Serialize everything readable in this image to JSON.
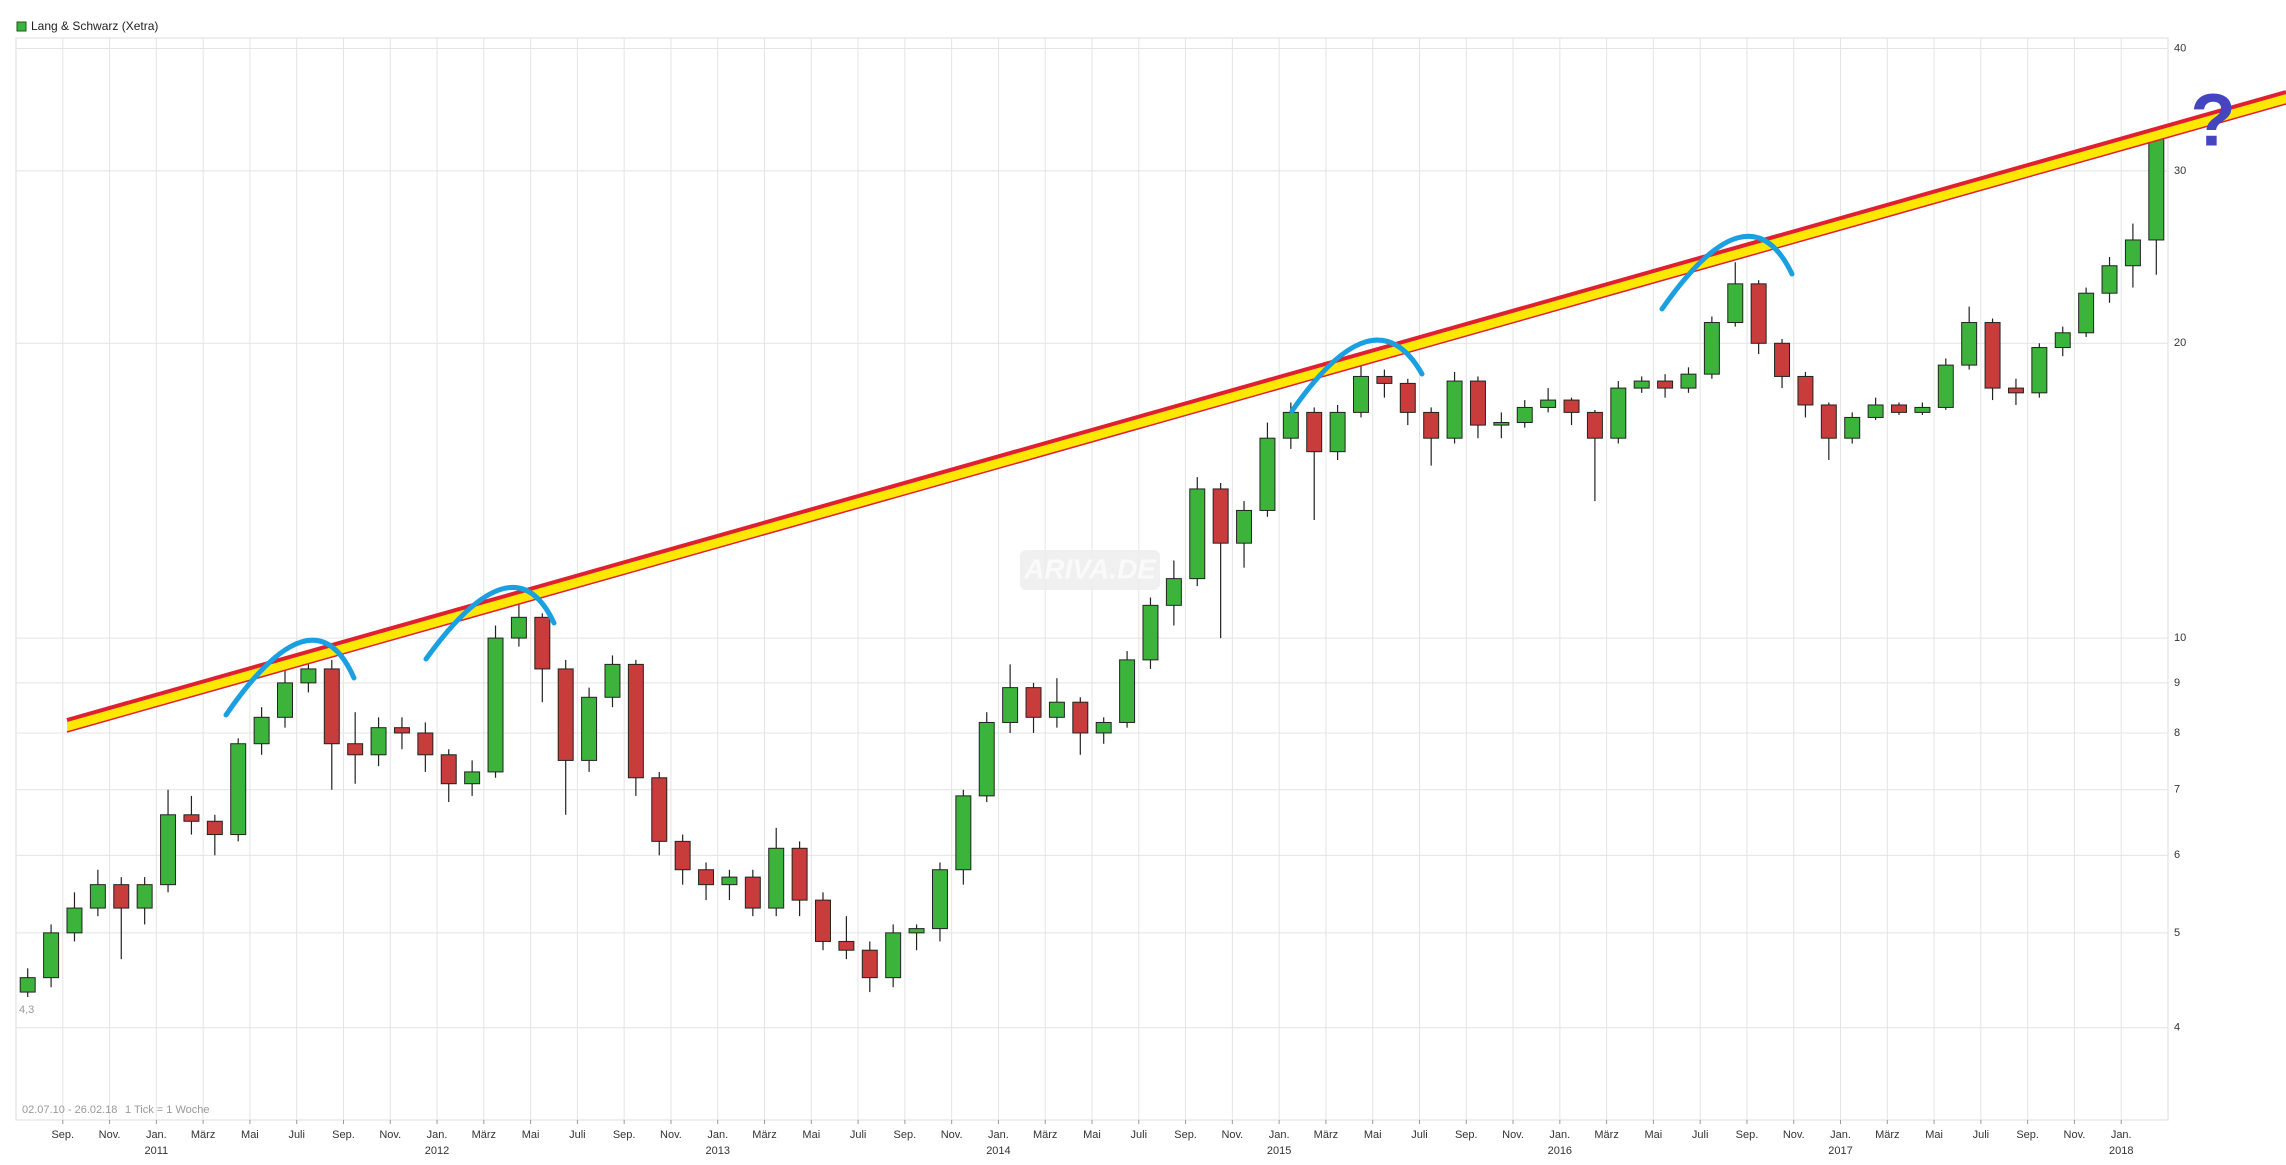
{
  "chart_data": {
    "type": "candlestick",
    "title": "Lang & Schwarz (Xetra)",
    "range_label": "02.07.10 - 26.02.18",
    "tick_info": "1 Tick = 1 Woche",
    "start_label": "4,3",
    "watermark": "ARIVA.DE",
    "annotation": "?",
    "log_scale": true,
    "grid": true,
    "up_color": "#3cb43c",
    "down_color": "#c83c3c",
    "x": [
      "2010-07",
      "2010-08",
      "2010-09",
      "2010-10",
      "2010-11",
      "2010-12",
      "2011-01",
      "2011-02",
      "2011-03",
      "2011-04",
      "2011-05",
      "2011-06",
      "2011-07",
      "2011-08",
      "2011-09",
      "2011-10",
      "2011-11",
      "2011-12",
      "2012-01",
      "2012-02",
      "2012-03",
      "2012-04",
      "2012-05",
      "2012-06",
      "2012-07",
      "2012-08",
      "2012-09",
      "2012-10",
      "2012-11",
      "2012-12",
      "2013-01",
      "2013-02",
      "2013-03",
      "2013-04",
      "2013-05",
      "2013-06",
      "2013-07",
      "2013-08",
      "2013-09",
      "2013-10",
      "2013-11",
      "2013-12",
      "2014-01",
      "2014-02",
      "2014-03",
      "2014-04",
      "2014-05",
      "2014-06",
      "2014-07",
      "2014-08",
      "2014-09",
      "2014-10",
      "2014-11",
      "2014-12",
      "2015-01",
      "2015-02",
      "2015-03",
      "2015-04",
      "2015-05",
      "2015-06",
      "2015-07",
      "2015-08",
      "2015-09",
      "2015-10",
      "2015-11",
      "2015-12",
      "2016-01",
      "2016-02",
      "2016-03",
      "2016-04",
      "2016-05",
      "2016-06",
      "2016-07",
      "2016-08",
      "2016-09",
      "2016-10",
      "2016-11",
      "2016-12",
      "2017-01",
      "2017-02",
      "2017-03",
      "2017-04",
      "2017-05",
      "2017-06",
      "2017-07",
      "2017-08",
      "2017-09",
      "2017-10",
      "2017-11",
      "2017-12",
      "2018-01",
      "2018-02"
    ],
    "open": [
      4.35,
      4.5,
      5.0,
      5.3,
      5.6,
      5.3,
      5.6,
      6.6,
      6.5,
      6.3,
      7.8,
      8.3,
      9.0,
      9.3,
      7.8,
      7.6,
      8.1,
      8.0,
      7.6,
      7.1,
      7.3,
      10.0,
      10.5,
      9.3,
      7.5,
      8.7,
      9.4,
      7.2,
      6.2,
      5.8,
      5.6,
      5.7,
      5.3,
      6.1,
      5.4,
      4.9,
      4.8,
      4.5,
      5.0,
      5.05,
      5.8,
      6.9,
      8.2,
      8.9,
      8.3,
      8.6,
      8.0,
      8.2,
      9.5,
      10.8,
      11.5,
      14.2,
      12.5,
      13.5,
      16.0,
      17.0,
      15.5,
      17.0,
      18.5,
      18.2,
      17.0,
      16.0,
      18.3,
      16.5,
      16.6,
      17.2,
      17.5,
      17.0,
      16.0,
      18.0,
      18.3,
      18.0,
      18.6,
      21.0,
      23.0,
      20.0,
      18.5,
      17.3,
      16.0,
      16.8,
      17.3,
      17.0,
      17.2,
      19.0,
      21.0,
      18.0,
      17.8,
      19.8,
      20.5,
      22.5,
      24.0,
      25.5
    ],
    "high": [
      4.6,
      5.1,
      5.5,
      5.8,
      5.7,
      5.7,
      7.0,
      6.9,
      6.6,
      7.9,
      8.5,
      9.3,
      9.6,
      9.5,
      8.4,
      8.3,
      8.3,
      8.2,
      7.7,
      7.5,
      10.3,
      10.9,
      10.6,
      9.5,
      8.9,
      9.6,
      9.5,
      7.3,
      6.3,
      5.9,
      5.8,
      5.8,
      6.4,
      6.2,
      5.5,
      5.2,
      4.9,
      5.1,
      5.1,
      5.9,
      7.0,
      8.4,
      9.4,
      9.0,
      9.1,
      8.7,
      8.3,
      9.7,
      11.0,
      12.0,
      14.6,
      14.4,
      13.8,
      16.6,
      17.4,
      17.2,
      17.3,
      19.0,
      18.8,
      18.4,
      17.2,
      18.7,
      18.5,
      17.0,
      17.5,
      18.0,
      17.6,
      17.1,
      18.3,
      18.5,
      18.6,
      18.9,
      21.3,
      24.2,
      23.2,
      20.2,
      18.7,
      17.4,
      17.0,
      17.6,
      17.4,
      17.4,
      19.3,
      21.8,
      21.2,
      18.4,
      20.0,
      20.8,
      22.8,
      24.5,
      26.5,
      33.0
    ],
    "low": [
      4.3,
      4.4,
      4.9,
      5.2,
      4.7,
      5.1,
      5.5,
      6.3,
      6.0,
      6.2,
      7.6,
      8.1,
      8.8,
      7.0,
      7.1,
      7.4,
      7.7,
      7.3,
      6.8,
      6.9,
      7.2,
      9.8,
      8.6,
      6.6,
      7.3,
      8.5,
      6.9,
      6.0,
      5.6,
      5.4,
      5.4,
      5.2,
      5.2,
      5.2,
      4.8,
      4.7,
      4.35,
      4.4,
      4.8,
      4.9,
      5.6,
      6.8,
      8.0,
      8.0,
      8.1,
      7.6,
      7.8,
      8.1,
      9.3,
      10.3,
      11.3,
      10.0,
      11.8,
      13.3,
      15.6,
      13.2,
      15.2,
      16.8,
      17.6,
      16.5,
      15.0,
      15.8,
      16.0,
      16.0,
      16.4,
      17.0,
      16.5,
      13.8,
      15.8,
      17.8,
      17.6,
      17.8,
      18.4,
      20.8,
      19.5,
      18.0,
      16.8,
      15.2,
      15.8,
      16.7,
      16.9,
      16.9,
      17.1,
      18.8,
      17.5,
      17.3,
      17.6,
      19.4,
      20.3,
      22.0,
      22.8,
      23.5
    ],
    "close": [
      4.5,
      5.0,
      5.3,
      5.6,
      5.3,
      5.6,
      6.6,
      6.5,
      6.3,
      7.8,
      8.3,
      9.0,
      9.3,
      7.8,
      7.6,
      8.1,
      8.0,
      7.6,
      7.1,
      7.3,
      10.0,
      10.5,
      9.3,
      7.5,
      8.7,
      9.4,
      7.2,
      6.2,
      5.8,
      5.6,
      5.7,
      5.3,
      6.1,
      5.4,
      4.9,
      4.8,
      4.5,
      5.0,
      5.05,
      5.8,
      6.9,
      8.2,
      8.9,
      8.3,
      8.6,
      8.0,
      8.2,
      9.5,
      10.8,
      11.5,
      14.2,
      12.5,
      13.5,
      16.0,
      17.0,
      15.5,
      17.0,
      18.5,
      18.2,
      17.0,
      16.0,
      18.3,
      16.5,
      16.6,
      17.2,
      17.5,
      17.0,
      16.0,
      18.0,
      18.3,
      18.0,
      18.6,
      21.0,
      23.0,
      20.0,
      18.5,
      17.3,
      16.0,
      16.8,
      17.3,
      17.0,
      17.2,
      19.0,
      21.0,
      18.0,
      17.8,
      19.8,
      20.5,
      22.5,
      24.0,
      25.5,
      32.5
    ],
    "xlim": [
      "2010-07",
      "2018-02"
    ],
    "xticks": [
      {
        "value": "2010-09",
        "label": "Sep."
      },
      {
        "value": "2010-11",
        "label": "Nov."
      },
      {
        "value": "2011-01",
        "label": "Jan."
      },
      {
        "value": "2011-03",
        "label": "März"
      },
      {
        "value": "2011-05",
        "label": "Mai"
      },
      {
        "value": "2011-07",
        "label": "Juli"
      },
      {
        "value": "2011-09",
        "label": "Sep."
      },
      {
        "value": "2011-11",
        "label": "Nov."
      },
      {
        "value": "2012-01",
        "label": "Jan."
      },
      {
        "value": "2012-03",
        "label": "März"
      },
      {
        "value": "2012-05",
        "label": "Mai"
      },
      {
        "value": "2012-07",
        "label": "Juli"
      },
      {
        "value": "2012-09",
        "label": "Sep."
      },
      {
        "value": "2012-11",
        "label": "Nov."
      },
      {
        "value": "2013-01",
        "label": "Jan."
      },
      {
        "value": "2013-03",
        "label": "März"
      },
      {
        "value": "2013-05",
        "label": "Mai"
      },
      {
        "value": "2013-07",
        "label": "Juli"
      },
      {
        "value": "2013-09",
        "label": "Sep."
      },
      {
        "value": "2013-11",
        "label": "Nov."
      },
      {
        "value": "2014-01",
        "label": "Jan."
      },
      {
        "value": "2014-03",
        "label": "März"
      },
      {
        "value": "2014-05",
        "label": "Mai"
      },
      {
        "value": "2014-07",
        "label": "Juli"
      },
      {
        "value": "2014-09",
        "label": "Sep."
      },
      {
        "value": "2014-11",
        "label": "Nov."
      },
      {
        "value": "2015-01",
        "label": "Jan."
      },
      {
        "value": "2015-03",
        "label": "März"
      },
      {
        "value": "2015-05",
        "label": "Mai"
      },
      {
        "value": "2015-07",
        "label": "Juli"
      },
      {
        "value": "2015-09",
        "label": "Sep."
      },
      {
        "value": "2015-11",
        "label": "Nov."
      },
      {
        "value": "2016-01",
        "label": "Jan."
      },
      {
        "value": "2016-03",
        "label": "März"
      },
      {
        "value": "2016-05",
        "label": "Mai"
      },
      {
        "value": "2016-07",
        "label": "Juli"
      },
      {
        "value": "2016-09",
        "label": "Sep."
      },
      {
        "value": "2016-11",
        "label": "Nov."
      },
      {
        "value": "2017-01",
        "label": "Jan."
      },
      {
        "value": "2017-03",
        "label": "März"
      },
      {
        "value": "2017-05",
        "label": "Mai"
      },
      {
        "value": "2017-07",
        "label": "Juli"
      },
      {
        "value": "2017-09",
        "label": "Sep."
      },
      {
        "value": "2017-11",
        "label": "Nov."
      },
      {
        "value": "2018-01",
        "label": "Jan."
      }
    ],
    "year_labels": [
      {
        "value": "2011-01",
        "label": "2011"
      },
      {
        "value": "2012-01",
        "label": "2012"
      },
      {
        "value": "2013-01",
        "label": "2013"
      },
      {
        "value": "2014-01",
        "label": "2014"
      },
      {
        "value": "2015-01",
        "label": "2015"
      },
      {
        "value": "2016-01",
        "label": "2016"
      },
      {
        "value": "2017-01",
        "label": "2017"
      },
      {
        "value": "2018-01",
        "label": "2018"
      }
    ],
    "ylim": [
      3.22,
      41
    ],
    "yticks": [
      4,
      5,
      6,
      7,
      8,
      9,
      10,
      20,
      30,
      40
    ]
  }
}
